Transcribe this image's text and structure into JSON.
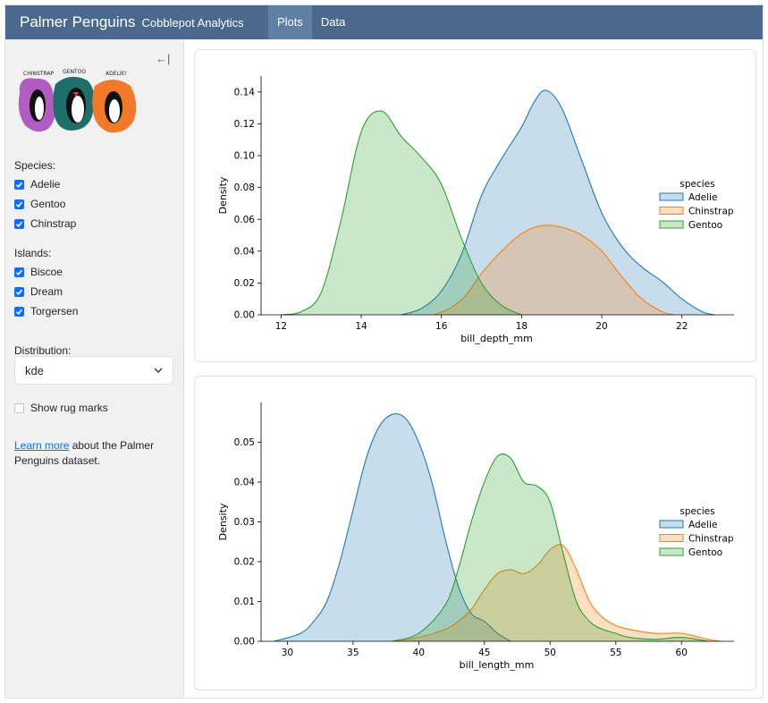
{
  "navbar": {
    "title": "Palmer Penguins",
    "subtitle": "Cobblepot Analytics",
    "tabs": [
      {
        "label": "Plots",
        "active": true
      },
      {
        "label": "Data",
        "active": false
      }
    ]
  },
  "sidebar": {
    "collapse_icon": "←|",
    "logo_labels": [
      "CHINSTRAP",
      "GENTOO",
      "ADÉLIE!"
    ],
    "species_label": "Species:",
    "species": [
      {
        "label": "Adelie",
        "checked": true
      },
      {
        "label": "Gentoo",
        "checked": true
      },
      {
        "label": "Chinstrap",
        "checked": true
      }
    ],
    "islands_label": "Islands:",
    "islands": [
      {
        "label": "Biscoe",
        "checked": true
      },
      {
        "label": "Dream",
        "checked": true
      },
      {
        "label": "Torgersen",
        "checked": true
      }
    ],
    "distribution_label": "Distribution:",
    "distribution_value": "kde",
    "rug_label": "Show rug marks",
    "rug_checked": false,
    "info_link": "Learn more",
    "info_text": " about the Palmer Penguins dataset."
  },
  "colors": {
    "navbar": "#4a698c",
    "accent": "#0d6efd",
    "adelie": "#1f77b4",
    "chinstrap": "#ff7f0e",
    "gentoo": "#2ca02c"
  },
  "chart_data": [
    {
      "type": "area",
      "xlabel": "bill_depth_mm",
      "ylabel": "Density",
      "xlim": [
        11.5,
        23.3
      ],
      "ylim": [
        0,
        0.15
      ],
      "x_ticks": [
        12,
        14,
        16,
        18,
        20,
        22
      ],
      "y_ticks": [
        0.0,
        0.02,
        0.04,
        0.06,
        0.08,
        0.1,
        0.12,
        0.14
      ],
      "y_tick_labels": [
        "0.00",
        "0.02",
        "0.04",
        "0.06",
        "0.08",
        "0.10",
        "0.12",
        "0.14"
      ],
      "legend_title": "species",
      "legend_position": "right",
      "series": [
        {
          "name": "Adelie",
          "color": "#1f77b4",
          "x": [
            15,
            15.5,
            16,
            16.5,
            17,
            17.5,
            18,
            18.3,
            18.6,
            19,
            19.5,
            20,
            20.5,
            21,
            21.5,
            22,
            22.5,
            22.8
          ],
          "y": [
            0,
            0.004,
            0.015,
            0.038,
            0.075,
            0.098,
            0.118,
            0.133,
            0.141,
            0.13,
            0.097,
            0.064,
            0.043,
            0.03,
            0.021,
            0.01,
            0.002,
            0
          ]
        },
        {
          "name": "Chinstrap",
          "color": "#ff7f0e",
          "x": [
            15.8,
            16.2,
            16.6,
            17,
            17.5,
            18,
            18.5,
            19,
            19.5,
            20,
            20.5,
            21,
            21.5,
            21.8
          ],
          "y": [
            0,
            0.004,
            0.012,
            0.026,
            0.04,
            0.051,
            0.056,
            0.055,
            0.05,
            0.04,
            0.024,
            0.01,
            0.002,
            0
          ]
        },
        {
          "name": "Gentoo",
          "color": "#2ca02c",
          "x": [
            12,
            12.5,
            13,
            13.5,
            14,
            14.5,
            15,
            15.5,
            16,
            16.5,
            17,
            17.5,
            18
          ],
          "y": [
            0,
            0.002,
            0.014,
            0.06,
            0.115,
            0.128,
            0.112,
            0.099,
            0.082,
            0.048,
            0.02,
            0.006,
            0
          ]
        }
      ]
    },
    {
      "type": "area",
      "xlabel": "bill_length_mm",
      "ylabel": "Density",
      "xlim": [
        28,
        64
      ],
      "ylim": [
        0,
        0.06
      ],
      "x_ticks": [
        30,
        35,
        40,
        45,
        50,
        55,
        60
      ],
      "y_ticks": [
        0.0,
        0.01,
        0.02,
        0.03,
        0.04,
        0.05
      ],
      "y_tick_labels": [
        "0.00",
        "0.01",
        "0.02",
        "0.03",
        "0.04",
        "0.05"
      ],
      "legend_title": "species",
      "legend_position": "right",
      "series": [
        {
          "name": "Adelie",
          "color": "#1f77b4",
          "x": [
            29,
            31,
            32,
            33,
            34,
            35,
            36,
            37,
            38,
            39,
            40,
            41,
            42,
            43,
            44,
            45,
            46,
            47
          ],
          "y": [
            0,
            0.002,
            0.005,
            0.01,
            0.02,
            0.033,
            0.046,
            0.054,
            0.057,
            0.056,
            0.05,
            0.04,
            0.026,
            0.014,
            0.007,
            0.005,
            0.002,
            0
          ]
        },
        {
          "name": "Chinstrap",
          "color": "#ff7f0e",
          "x": [
            38,
            40,
            42,
            43,
            44,
            45,
            46,
            47,
            48,
            49,
            50,
            51,
            52,
            53,
            54,
            55,
            56,
            58,
            60,
            62,
            63
          ],
          "y": [
            0,
            0.001,
            0.003,
            0.005,
            0.008,
            0.013,
            0.017,
            0.018,
            0.017,
            0.019,
            0.023,
            0.024,
            0.018,
            0.01,
            0.006,
            0.004,
            0.003,
            0.002,
            0.002,
            0.0005,
            0
          ]
        },
        {
          "name": "Gentoo",
          "color": "#2ca02c",
          "x": [
            38,
            40,
            42,
            43,
            44,
            45,
            46,
            47,
            48,
            49,
            50,
            51,
            52,
            53,
            54,
            55,
            56,
            58,
            60,
            62
          ],
          "y": [
            0,
            0.002,
            0.009,
            0.018,
            0.03,
            0.04,
            0.0465,
            0.046,
            0.04,
            0.039,
            0.035,
            0.022,
            0.01,
            0.005,
            0.003,
            0.002,
            0.001,
            0.0005,
            0.001,
            0
          ]
        }
      ]
    }
  ]
}
